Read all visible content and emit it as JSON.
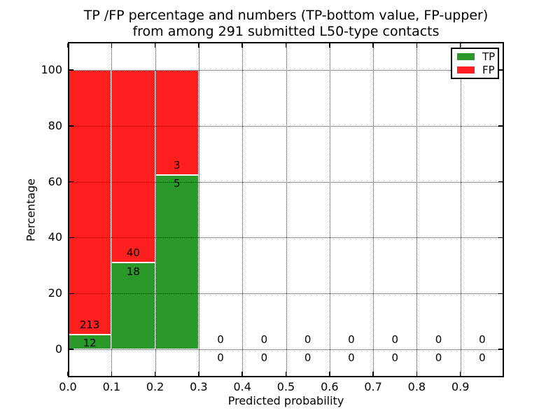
{
  "title": {
    "line1": "TP /FP percentage and numbers (TP-bottom value, FP-upper)",
    "line2": "from among 291 submitted L50-type contacts"
  },
  "chart_data": {
    "type": "bar",
    "stacked": true,
    "title": "TP /FP percentage and numbers (TP-bottom value, FP-upper) from among 291 submitted L50-type contacts",
    "xlabel": "Predicted probability",
    "ylabel": "Percentage",
    "xlim": [
      0.0,
      1.0
    ],
    "ylim": [
      -10,
      110
    ],
    "x_ticks": [
      "0.0",
      "0.1",
      "0.2",
      "0.3",
      "0.4",
      "0.5",
      "0.6",
      "0.7",
      "0.8",
      "0.9"
    ],
    "y_ticks": [
      "0",
      "20",
      "40",
      "60",
      "80",
      "100"
    ],
    "grid": "dotted",
    "legend_position": "upper right",
    "total_submitted": 291,
    "categories": [
      "0.0-0.1",
      "0.1-0.2",
      "0.2-0.3",
      "0.3-0.4",
      "0.4-0.5",
      "0.5-0.6",
      "0.6-0.7",
      "0.7-0.8",
      "0.8-0.9",
      "0.9-1.0"
    ],
    "bin_edges": [
      0.0,
      0.1,
      0.2,
      0.3,
      0.4,
      0.5,
      0.6,
      0.7,
      0.8,
      0.9,
      1.0
    ],
    "series": [
      {
        "name": "TP",
        "color": "#2a992a",
        "counts": [
          12,
          18,
          5,
          0,
          0,
          0,
          0,
          0,
          0,
          0
        ]
      },
      {
        "name": "FP",
        "color": "#ff1f1f",
        "counts": [
          213,
          40,
          3,
          0,
          0,
          0,
          0,
          0,
          0,
          0
        ]
      }
    ],
    "tp_percent_of_bin": [
      5.33,
      31.03,
      62.5,
      0,
      0,
      0,
      0,
      0,
      0,
      0
    ]
  },
  "colors": {
    "tp": "#2a992a",
    "fp": "#ff1f1f",
    "background": "#ffffff",
    "frame": "#000000"
  }
}
